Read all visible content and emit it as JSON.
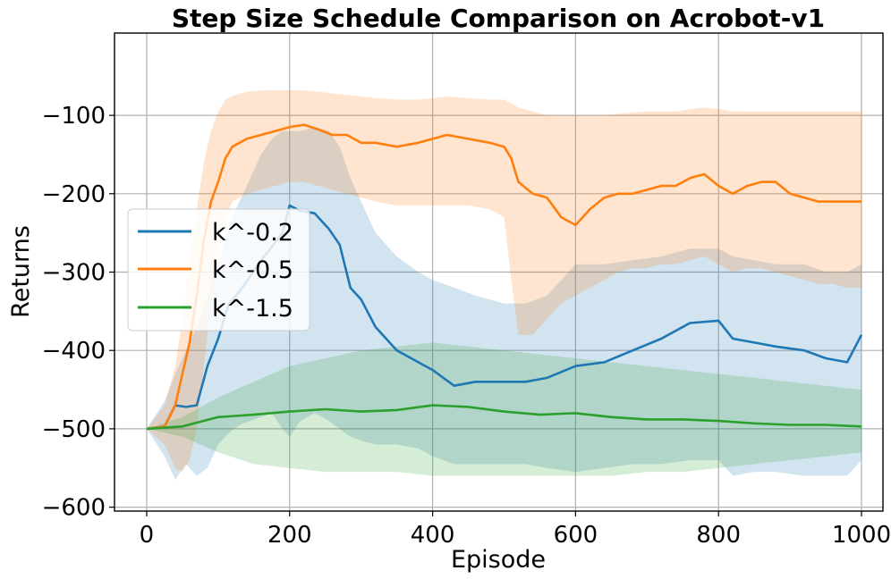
{
  "chart_data": {
    "type": "line",
    "title": "Step Size Schedule Comparison on Acrobot-v1",
    "xlabel": "Episode",
    "ylabel": "Returns",
    "xlim": [
      -45,
      1030
    ],
    "ylim": [
      -605,
      5
    ],
    "grid": true,
    "legend_position": "center-left",
    "x_ticks": [
      0,
      200,
      400,
      600,
      800,
      1000
    ],
    "x_tick_labels": [
      "0",
      "200",
      "400",
      "600",
      "800",
      "1000"
    ],
    "y_ticks": [
      -100,
      -200,
      -300,
      -400,
      -500,
      -600
    ],
    "y_tick_labels": [
      "−100",
      "−200",
      "−300",
      "−400",
      "−500",
      "−600"
    ],
    "series": [
      {
        "name": "k^-0.2",
        "color": "#1f77b4",
        "x": [
          0,
          25,
          40,
          55,
          70,
          85,
          100,
          115,
          130,
          145,
          160,
          175,
          190,
          200,
          215,
          235,
          255,
          270,
          285,
          300,
          320,
          350,
          380,
          400,
          430,
          460,
          500,
          530,
          560,
          600,
          640,
          680,
          720,
          760,
          800,
          820,
          850,
          880,
          920,
          950,
          980,
          1000
        ],
        "values": [
          -500,
          -497,
          -470,
          -472,
          -470,
          -420,
          -385,
          -340,
          -325,
          -305,
          -285,
          -268,
          -250,
          -215,
          -222,
          -225,
          -245,
          -265,
          -320,
          -335,
          -370,
          -400,
          -415,
          -425,
          -445,
          -440,
          -440,
          -440,
          -435,
          -420,
          -415,
          -400,
          -385,
          -365,
          -362,
          -385,
          -390,
          -395,
          -400,
          -410,
          -415,
          -380
        ],
        "band_low": [
          -500,
          -535,
          -565,
          -545,
          -560,
          -550,
          -520,
          -505,
          -495,
          -490,
          -485,
          -480,
          -500,
          -510,
          -490,
          -480,
          -490,
          -500,
          -510,
          -515,
          -520,
          -520,
          -525,
          -535,
          -545,
          -545,
          -545,
          -545,
          -550,
          -555,
          -550,
          -545,
          -545,
          -540,
          -540,
          -560,
          -555,
          -555,
          -560,
          -560,
          -560,
          -540
        ],
        "band_high": [
          -500,
          -465,
          -430,
          -400,
          -370,
          -330,
          -290,
          -240,
          -210,
          -180,
          -150,
          -130,
          -120,
          -120,
          -120,
          -115,
          -120,
          -140,
          -180,
          -210,
          -250,
          -280,
          -300,
          -310,
          -320,
          -330,
          -340,
          -340,
          -330,
          -290,
          -290,
          -285,
          -280,
          -270,
          -270,
          -280,
          -285,
          -290,
          -290,
          -300,
          -300,
          -290
        ]
      },
      {
        "name": "k^-0.5",
        "color": "#ff7f0e",
        "x": [
          0,
          25,
          40,
          50,
          60,
          70,
          80,
          90,
          100,
          110,
          120,
          140,
          160,
          180,
          200,
          220,
          240,
          260,
          280,
          300,
          320,
          350,
          380,
          400,
          420,
          450,
          480,
          500,
          510,
          520,
          540,
          560,
          580,
          600,
          620,
          640,
          660,
          680,
          700,
          720,
          740,
          760,
          780,
          800,
          820,
          840,
          860,
          880,
          900,
          920,
          940,
          960,
          980,
          1000
        ],
        "values": [
          -500,
          -497,
          -470,
          -430,
          -390,
          -330,
          -260,
          -210,
          -185,
          -155,
          -140,
          -130,
          -125,
          -120,
          -115,
          -112,
          -118,
          -125,
          -125,
          -135,
          -135,
          -140,
          -135,
          -130,
          -125,
          -130,
          -135,
          -140,
          -155,
          -185,
          -200,
          -205,
          -230,
          -240,
          -220,
          -205,
          -200,
          -200,
          -195,
          -190,
          -190,
          -180,
          -175,
          -190,
          -200,
          -190,
          -185,
          -185,
          -200,
          -205,
          -210,
          -210,
          -210,
          -210
        ],
        "band_low": [
          -500,
          -520,
          -550,
          -555,
          -540,
          -500,
          -420,
          -340,
          -280,
          -230,
          -210,
          -200,
          -195,
          -190,
          -185,
          -185,
          -190,
          -195,
          -200,
          -205,
          -210,
          -215,
          -215,
          -215,
          -215,
          -215,
          -220,
          -230,
          -310,
          -380,
          -380,
          -360,
          -340,
          -330,
          -320,
          -310,
          -300,
          -295,
          -295,
          -290,
          -290,
          -285,
          -280,
          -290,
          -300,
          -295,
          -295,
          -300,
          -305,
          -310,
          -315,
          -315,
          -320,
          -320
        ],
        "band_high": [
          -500,
          -470,
          -420,
          -360,
          -290,
          -220,
          -160,
          -120,
          -95,
          -80,
          -75,
          -70,
          -68,
          -68,
          -68,
          -68,
          -70,
          -72,
          -74,
          -76,
          -78,
          -80,
          -80,
          -78,
          -76,
          -78,
          -80,
          -80,
          -85,
          -90,
          -95,
          -100,
          -100,
          -100,
          -100,
          -100,
          -98,
          -96,
          -95,
          -95,
          -95,
          -92,
          -90,
          -92,
          -95,
          -95,
          -95,
          -95,
          -95,
          -95,
          -95,
          -95,
          -95,
          -95
        ]
      },
      {
        "name": "k^-1.5",
        "color": "#2ca02c",
        "x": [
          0,
          50,
          100,
          150,
          200,
          250,
          300,
          350,
          400,
          450,
          500,
          550,
          600,
          650,
          700,
          750,
          800,
          850,
          900,
          950,
          1000
        ],
        "values": [
          -500,
          -497,
          -485,
          -482,
          -478,
          -475,
          -478,
          -476,
          -470,
          -472,
          -478,
          -482,
          -480,
          -485,
          -488,
          -488,
          -490,
          -493,
          -495,
          -495,
          -497
        ],
        "band_low": [
          -500,
          -510,
          -530,
          -545,
          -550,
          -555,
          -555,
          -555,
          -560,
          -560,
          -560,
          -560,
          -560,
          -560,
          -555,
          -555,
          -550,
          -545,
          -540,
          -535,
          -530
        ],
        "band_high": [
          -500,
          -485,
          -460,
          -440,
          -420,
          -410,
          -400,
          -395,
          -390,
          -395,
          -400,
          -405,
          -410,
          -415,
          -420,
          -425,
          -430,
          -435,
          -440,
          -445,
          -450
        ]
      }
    ]
  }
}
